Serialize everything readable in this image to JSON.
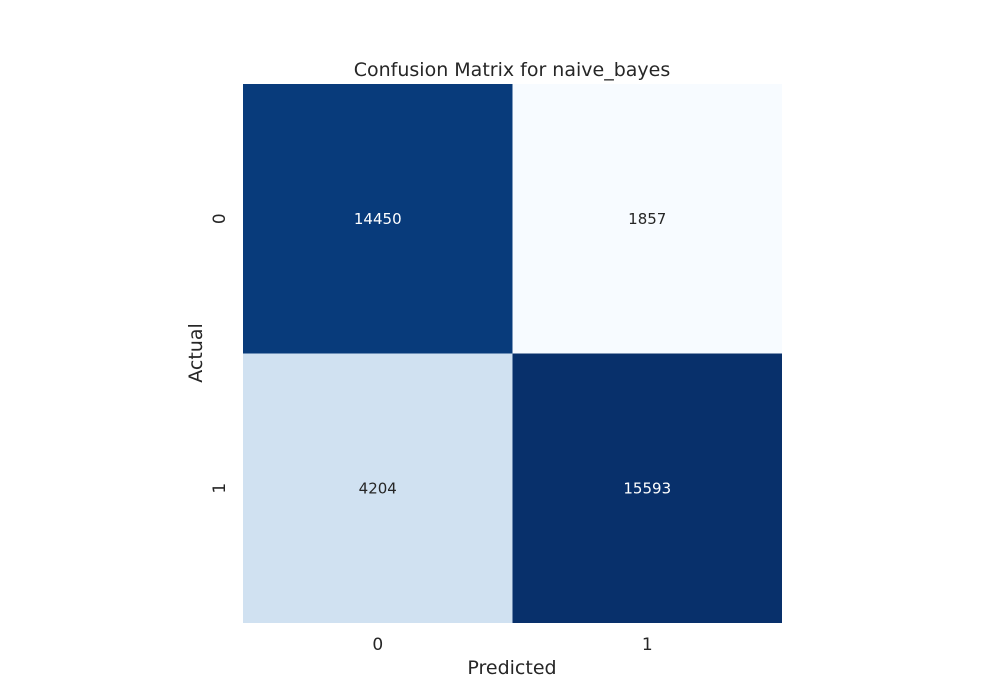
{
  "chart_data": {
    "type": "heatmap",
    "title": "Confusion Matrix for naive_bayes",
    "xlabel": "Predicted",
    "ylabel": "Actual",
    "x_categories": [
      "0",
      "1"
    ],
    "y_categories": [
      "0",
      "1"
    ],
    "values": [
      [
        14450,
        1857
      ],
      [
        4204,
        15593
      ]
    ],
    "colormap": "Blues",
    "colorbar": false,
    "grid": false,
    "colors": {
      "low": "#f7fbff",
      "mid_low": "#d6e6f4",
      "mid_high": "#084488",
      "high": "#08306b",
      "text_light": "#ffffff",
      "text_dark": "#262626"
    }
  }
}
